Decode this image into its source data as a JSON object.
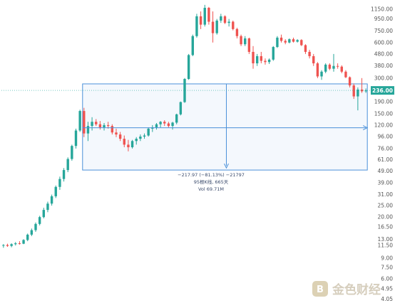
{
  "chart_data": {
    "type": "candlestick",
    "scale": "log",
    "ylim": [
      3.8,
      1300
    ],
    "y_ticks": [
      "1150.00",
      "950.00",
      "750.00",
      "600.00",
      "480.00",
      "380.00",
      "300.00",
      "236.00",
      "190.00",
      "150.00",
      "120.00",
      "96.00",
      "76.00",
      "61.00",
      "49.00",
      "39.00",
      "31.00",
      "25.00",
      "20.00",
      "16.50",
      "13.00",
      "11.50",
      "9.00",
      "7.50",
      "6.00",
      "4.95",
      "4.05"
    ],
    "current_price": {
      "label": "236.00",
      "value": 236
    },
    "colors": {
      "up": "#26a69a",
      "down": "#ef5350",
      "measure": "#4a90d9",
      "price_tag": "#26a69a"
    },
    "measure": {
      "from_price": 268,
      "to_price": 50,
      "lines": [
        "−217.97 (−81.13%) −21797",
        "95根K线, 665天",
        "Vol 69.71M"
      ]
    },
    "candles": [
      [
        11.5,
        11.8,
        11.0,
        11.6
      ],
      [
        11.6,
        11.9,
        11.2,
        11.4
      ],
      [
        11.4,
        12.0,
        11.1,
        11.8
      ],
      [
        11.8,
        12.3,
        11.5,
        12.0
      ],
      [
        12.0,
        12.5,
        11.7,
        11.9
      ],
      [
        11.9,
        13.0,
        11.8,
        12.8
      ],
      [
        12.8,
        14.5,
        12.5,
        14.2
      ],
      [
        14.2,
        16.0,
        13.8,
        15.5
      ],
      [
        15.5,
        18.0,
        15.0,
        17.5
      ],
      [
        17.5,
        20.5,
        17.0,
        20.0
      ],
      [
        20.0,
        24.0,
        19.5,
        23.0
      ],
      [
        23.0,
        27.0,
        22.0,
        26.0
      ],
      [
        26.0,
        31.0,
        25.0,
        30.0
      ],
      [
        30.0,
        37.0,
        29.0,
        36.0
      ],
      [
        36.0,
        44.0,
        34.0,
        42.0
      ],
      [
        42.0,
        52.0,
        40.0,
        50.0
      ],
      [
        50.0,
        64.0,
        48.0,
        62.0
      ],
      [
        62.0,
        82.0,
        60.0,
        80.0
      ],
      [
        80.0,
        112.0,
        76.0,
        108.0
      ],
      [
        108.0,
        162.0,
        105.0,
        158.0
      ],
      [
        158.0,
        168.0,
        95.0,
        102.0
      ],
      [
        102.0,
        128.0,
        88.0,
        118.0
      ],
      [
        118.0,
        140.0,
        108.0,
        128.0
      ],
      [
        128.0,
        135.0,
        118.0,
        122.0
      ],
      [
        122.0,
        130.0,
        110.0,
        115.0
      ],
      [
        115.0,
        125.0,
        108.0,
        120.0
      ],
      [
        120.0,
        128.0,
        112.0,
        118.0
      ],
      [
        118.0,
        122.0,
        100.0,
        104.0
      ],
      [
        104.0,
        112.0,
        95.0,
        100.0
      ],
      [
        100.0,
        105.0,
        88.0,
        92.0
      ],
      [
        92.0,
        98.0,
        78.0,
        82.0
      ],
      [
        82.0,
        90.0,
        72.0,
        78.0
      ],
      [
        78.0,
        90.0,
        76.0,
        88.0
      ],
      [
        88.0,
        95.0,
        82.0,
        92.0
      ],
      [
        92.0,
        100.0,
        88.0,
        96.0
      ],
      [
        96.0,
        102.0,
        92.0,
        98.0
      ],
      [
        98.0,
        115.0,
        96.0,
        112.0
      ],
      [
        112.0,
        120.0,
        105.0,
        115.0
      ],
      [
        115.0,
        125.0,
        110.0,
        122.0
      ],
      [
        122.0,
        130.0,
        115.0,
        128.0
      ],
      [
        128.0,
        132.0,
        118.0,
        124.0
      ],
      [
        124.0,
        128.0,
        115.0,
        118.0
      ],
      [
        118.0,
        128.0,
        110.0,
        126.0
      ],
      [
        126.0,
        150.0,
        122.0,
        148.0
      ],
      [
        148.0,
        190.0,
        145.0,
        188.0
      ],
      [
        188.0,
        300.0,
        185.0,
        295.0
      ],
      [
        295.0,
        480.0,
        290.0,
        470.0
      ],
      [
        470.0,
        700.0,
        460.0,
        680.0
      ],
      [
        680.0,
        1050.0,
        660.0,
        1000.0
      ],
      [
        1000.0,
        1100.0,
        780.0,
        850.0
      ],
      [
        850.0,
        1250.0,
        820.0,
        1180.0
      ],
      [
        1180.0,
        1200.0,
        850.0,
        900.0
      ],
      [
        900.0,
        1100.0,
        600.0,
        720.0
      ],
      [
        720.0,
        950.0,
        700.0,
        920.0
      ],
      [
        920.0,
        1050.0,
        880.0,
        1000.0
      ],
      [
        1000.0,
        1020.0,
        860.0,
        880.0
      ],
      [
        880.0,
        950.0,
        820.0,
        900.0
      ],
      [
        900.0,
        920.0,
        760.0,
        780.0
      ],
      [
        780.0,
        800.0,
        650.0,
        680.0
      ],
      [
        680.0,
        700.0,
        560.0,
        580.0
      ],
      [
        580.0,
        680.0,
        560.0,
        650.0
      ],
      [
        650.0,
        660.0,
        480.0,
        500.0
      ],
      [
        500.0,
        560.0,
        360.0,
        400.0
      ],
      [
        400.0,
        480.0,
        380.0,
        460.0
      ],
      [
        460.0,
        500.0,
        400.0,
        420.0
      ],
      [
        420.0,
        440.0,
        390.0,
        410.0
      ],
      [
        410.0,
        440.0,
        395.0,
        430.0
      ],
      [
        430.0,
        560.0,
        420.0,
        550.0
      ],
      [
        550.0,
        680.0,
        540.0,
        660.0
      ],
      [
        660.0,
        700.0,
        600.0,
        620.0
      ],
      [
        620.0,
        640.0,
        580.0,
        600.0
      ],
      [
        600.0,
        650.0,
        590.0,
        640.0
      ],
      [
        640.0,
        660.0,
        600.0,
        610.0
      ],
      [
        610.0,
        640.0,
        600.0,
        630.0
      ],
      [
        630.0,
        640.0,
        560.0,
        570.0
      ],
      [
        570.0,
        580.0,
        480.0,
        500.0
      ],
      [
        500.0,
        520.0,
        440.0,
        460.0
      ],
      [
        460.0,
        480.0,
        380.0,
        400.0
      ],
      [
        400.0,
        410.0,
        300.0,
        310.0
      ],
      [
        310.0,
        350.0,
        290.0,
        340.0
      ],
      [
        340.0,
        400.0,
        330.0,
        390.0
      ],
      [
        390.0,
        400.0,
        350.0,
        360.0
      ],
      [
        360.0,
        480.0,
        340.0,
        380.0
      ],
      [
        380.0,
        400.0,
        360.0,
        375.0
      ],
      [
        375.0,
        385.0,
        330.0,
        340.0
      ],
      [
        340.0,
        350.0,
        300.0,
        305.0
      ],
      [
        305.0,
        310.0,
        250.0,
        260.0
      ],
      [
        260.0,
        270.0,
        200.0,
        210.0
      ],
      [
        210.0,
        250.0,
        160.0,
        240.0
      ],
      [
        240.0,
        300.0,
        225.0,
        232.0
      ],
      [
        232.0,
        245.0,
        225.0,
        236.0
      ]
    ]
  }
}
